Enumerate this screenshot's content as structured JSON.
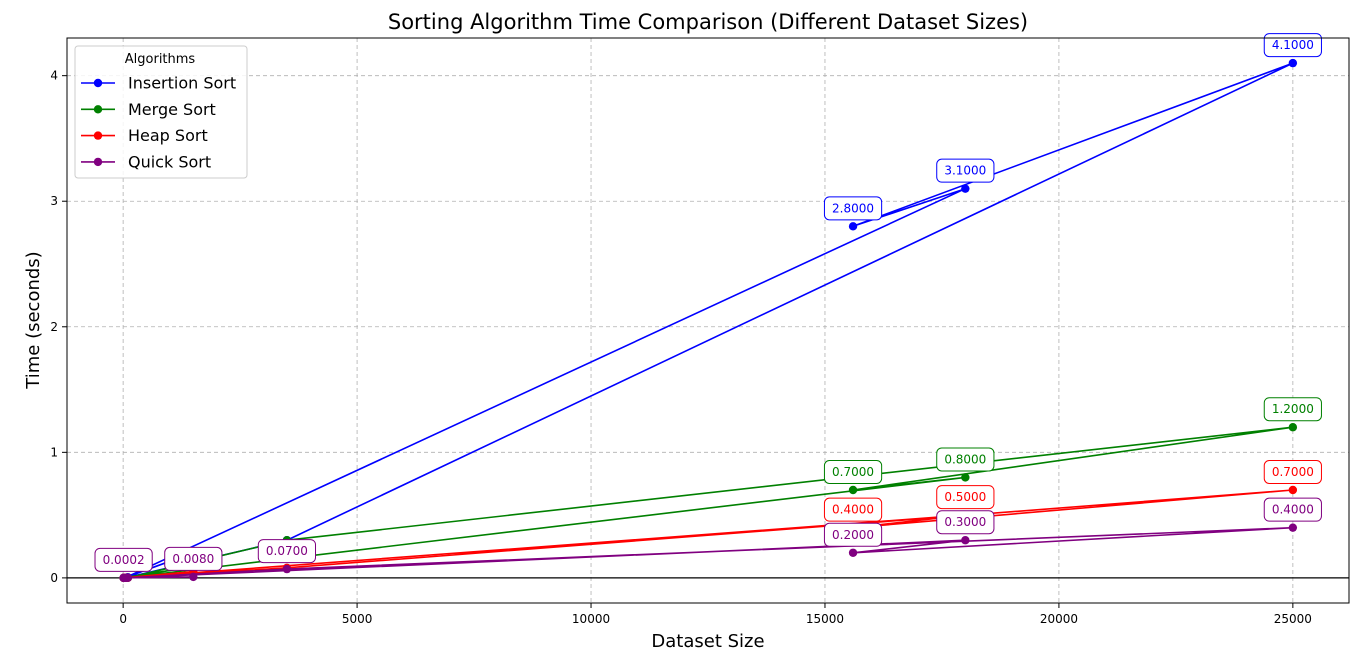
{
  "chart_data": {
    "type": "line",
    "title": "Sorting Algorithm Time Comparison (Different Dataset Sizes)",
    "xlabel": "Dataset Size",
    "ylabel": "Time (seconds)",
    "xlim": [
      -1200,
      26200
    ],
    "ylim": [
      -0.2,
      4.3
    ],
    "xticks": [
      0,
      5000,
      10000,
      15000,
      20000,
      25000
    ],
    "yticks": [
      0,
      1,
      2,
      3,
      4
    ],
    "grid": true,
    "legend": {
      "title": "Algorithms",
      "position": "top-left"
    },
    "x": [
      100,
      3500,
      25000,
      15600,
      18000,
      50,
      1500,
      10
    ],
    "series": [
      {
        "name": "Insertion Sort",
        "color": "#0000ff",
        "values": [
          0.005,
          0.3,
          4.1,
          2.8,
          3.1,
          0.002,
          0.2,
          0.0002
        ],
        "labels": [
          "",
          "",
          "4.1000",
          "2.8000",
          "3.1000",
          "",
          "",
          ""
        ]
      },
      {
        "name": "Merge Sort",
        "color": "#008000",
        "values": [
          0.001,
          0.3,
          1.2,
          0.7,
          0.8,
          0.001,
          0.09,
          0.0002
        ],
        "labels": [
          "",
          "",
          "1.2000",
          "0.7000",
          "0.8000",
          "",
          "",
          ""
        ]
      },
      {
        "name": "Heap Sort",
        "color": "#ff0000",
        "values": [
          0.001,
          0.08,
          0.7,
          0.4,
          0.5,
          0.0006,
          0.05,
          0.0002
        ],
        "labels": [
          "",
          "",
          "0.7000",
          "0.4000",
          "0.5000",
          "",
          "",
          ""
        ]
      },
      {
        "name": "Quick Sort",
        "color": "#800080",
        "values": [
          0.0004,
          0.07,
          0.4,
          0.2,
          0.3,
          0.0003,
          0.008,
          0.0002
        ],
        "labels": [
          "",
          "0.0700",
          "0.4000",
          "0.2000",
          "0.3000",
          "",
          "0.0080",
          "0.0002"
        ]
      }
    ]
  }
}
